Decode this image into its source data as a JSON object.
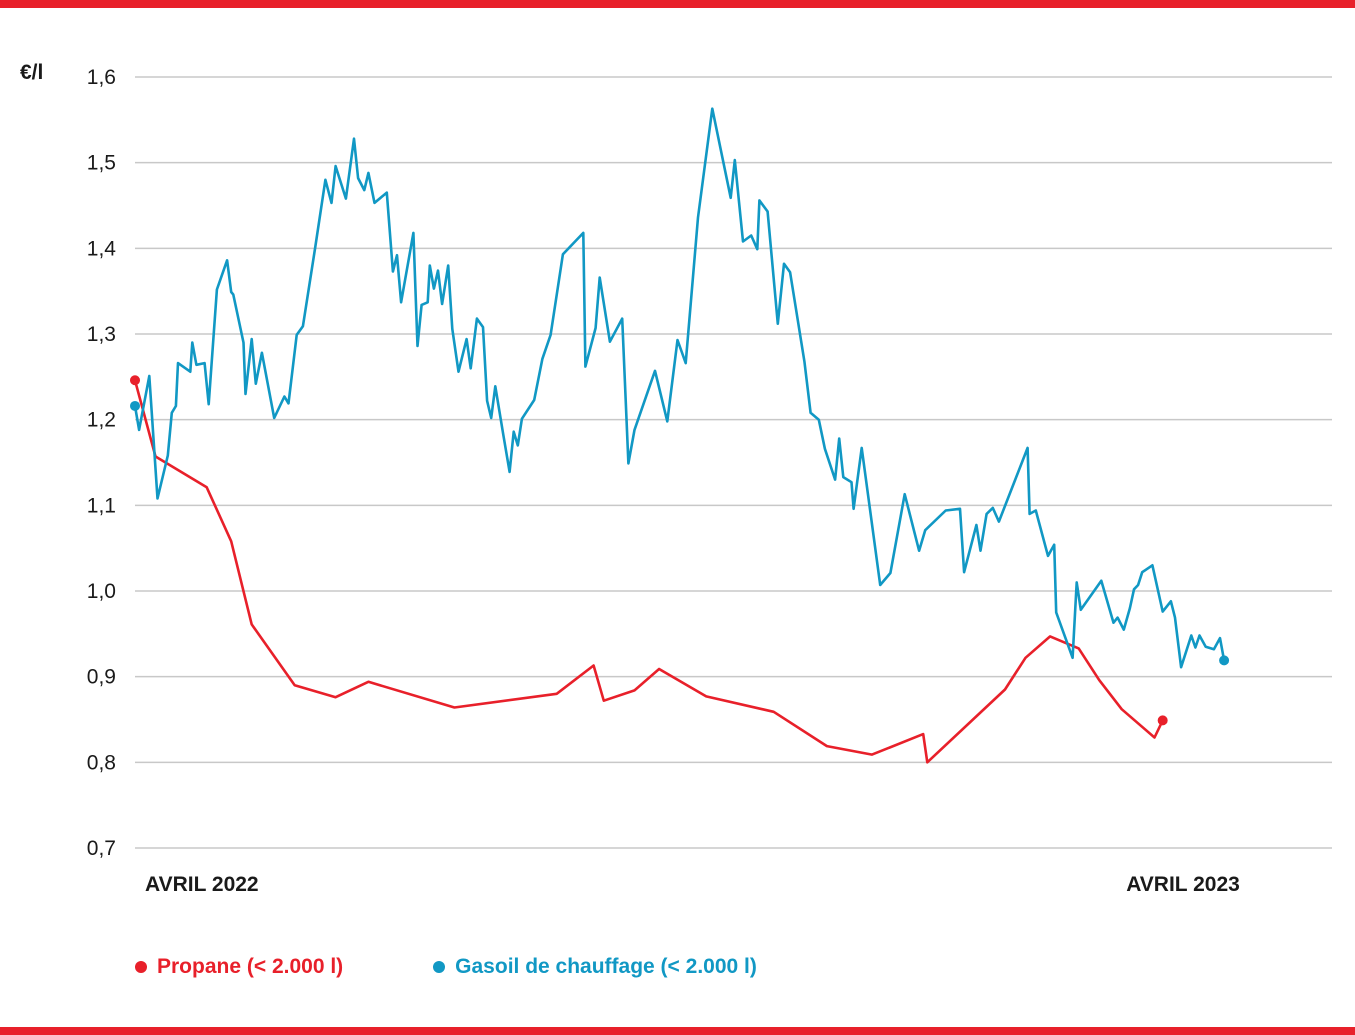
{
  "chart_data": {
    "type": "line",
    "unit_label": "€/l",
    "ylim": [
      0.7,
      1.6
    ],
    "yticks": [
      "1,6",
      "1,5",
      "1,4",
      "1,3",
      "1,2",
      "1,1",
      "1,0",
      "0,9",
      "0,8",
      "0,7"
    ],
    "ytick_values": [
      1.6,
      1.5,
      1.4,
      1.3,
      1.2,
      1.1,
      1.0,
      0.9,
      0.8,
      0.7
    ],
    "grid": "horizontal",
    "xlim": [
      0,
      53
    ],
    "xlabels": [
      {
        "text": "AVRIL 2022",
        "x": 0
      },
      {
        "text": "AVRIL 2023",
        "x": 52
      }
    ],
    "series": [
      {
        "name": "Propane (< 2.000 l)",
        "color": "#e8202a",
        "end_markers": true,
        "points": [
          [
            0.0,
            1.246
          ],
          [
            1.0,
            1.157
          ],
          [
            3.5,
            1.121
          ],
          [
            4.7,
            1.058
          ],
          [
            5.7,
            0.961
          ],
          [
            7.8,
            0.89
          ],
          [
            9.8,
            0.876
          ],
          [
            11.4,
            0.894
          ],
          [
            15.6,
            0.864
          ],
          [
            20.6,
            0.88
          ],
          [
            22.4,
            0.913
          ],
          [
            22.9,
            0.872
          ],
          [
            24.4,
            0.884
          ],
          [
            25.6,
            0.909
          ],
          [
            27.9,
            0.877
          ],
          [
            31.2,
            0.859
          ],
          [
            33.8,
            0.819
          ],
          [
            36.0,
            0.809
          ],
          [
            38.5,
            0.833
          ],
          [
            38.7,
            0.8
          ],
          [
            42.5,
            0.885
          ],
          [
            43.5,
            0.922
          ],
          [
            44.7,
            0.947
          ],
          [
            46.1,
            0.933
          ],
          [
            47.1,
            0.896
          ],
          [
            48.2,
            0.862
          ],
          [
            49.8,
            0.829
          ],
          [
            50.2,
            0.849
          ]
        ]
      },
      {
        "name": "Gasoil de chauffage (< 2.000 l)",
        "color": "#1198c4",
        "end_markers": true,
        "points": [
          [
            0.0,
            1.216
          ],
          [
            0.2,
            1.188
          ],
          [
            0.7,
            1.251
          ],
          [
            1.1,
            1.108
          ],
          [
            1.6,
            1.158
          ],
          [
            1.8,
            1.208
          ],
          [
            2.0,
            1.216
          ],
          [
            2.1,
            1.266
          ],
          [
            2.7,
            1.256
          ],
          [
            2.8,
            1.29
          ],
          [
            3.0,
            1.264
          ],
          [
            3.4,
            1.266
          ],
          [
            3.6,
            1.218
          ],
          [
            4.0,
            1.352
          ],
          [
            4.5,
            1.386
          ],
          [
            4.7,
            1.349
          ],
          [
            4.8,
            1.346
          ],
          [
            5.3,
            1.29
          ],
          [
            5.4,
            1.23
          ],
          [
            5.7,
            1.294
          ],
          [
            5.9,
            1.242
          ],
          [
            6.2,
            1.278
          ],
          [
            6.8,
            1.202
          ],
          [
            7.3,
            1.227
          ],
          [
            7.5,
            1.219
          ],
          [
            7.9,
            1.299
          ],
          [
            8.2,
            1.309
          ],
          [
            8.8,
            1.401
          ],
          [
            9.3,
            1.48
          ],
          [
            9.6,
            1.453
          ],
          [
            9.8,
            1.496
          ],
          [
            10.3,
            1.458
          ],
          [
            10.7,
            1.528
          ],
          [
            10.9,
            1.482
          ],
          [
            11.2,
            1.468
          ],
          [
            11.4,
            1.488
          ],
          [
            11.7,
            1.453
          ],
          [
            12.3,
            1.465
          ],
          [
            12.6,
            1.373
          ],
          [
            12.8,
            1.392
          ],
          [
            13.0,
            1.337
          ],
          [
            13.6,
            1.418
          ],
          [
            13.8,
            1.286
          ],
          [
            14.0,
            1.334
          ],
          [
            14.3,
            1.337
          ],
          [
            14.4,
            1.38
          ],
          [
            14.6,
            1.353
          ],
          [
            14.8,
            1.374
          ],
          [
            15.0,
            1.335
          ],
          [
            15.3,
            1.38
          ],
          [
            15.5,
            1.306
          ],
          [
            15.8,
            1.256
          ],
          [
            16.2,
            1.294
          ],
          [
            16.4,
            1.26
          ],
          [
            16.7,
            1.318
          ],
          [
            17.0,
            1.308
          ],
          [
            17.2,
            1.222
          ],
          [
            17.4,
            1.202
          ],
          [
            17.6,
            1.239
          ],
          [
            18.0,
            1.181
          ],
          [
            18.3,
            1.139
          ],
          [
            18.5,
            1.186
          ],
          [
            18.7,
            1.17
          ],
          [
            18.9,
            1.201
          ],
          [
            19.5,
            1.223
          ],
          [
            19.9,
            1.271
          ],
          [
            20.3,
            1.299
          ],
          [
            20.9,
            1.393
          ],
          [
            21.9,
            1.418
          ],
          [
            22.0,
            1.262
          ],
          [
            22.5,
            1.307
          ],
          [
            22.7,
            1.366
          ],
          [
            23.2,
            1.291
          ],
          [
            23.8,
            1.318
          ],
          [
            24.1,
            1.149
          ],
          [
            24.4,
            1.188
          ],
          [
            25.4,
            1.257
          ],
          [
            26.0,
            1.198
          ],
          [
            26.5,
            1.293
          ],
          [
            26.9,
            1.266
          ],
          [
            27.5,
            1.436
          ],
          [
            28.2,
            1.563
          ],
          [
            29.1,
            1.459
          ],
          [
            29.3,
            1.503
          ],
          [
            29.7,
            1.408
          ],
          [
            30.1,
            1.415
          ],
          [
            30.4,
            1.399
          ],
          [
            30.5,
            1.456
          ],
          [
            30.9,
            1.443
          ],
          [
            31.4,
            1.312
          ],
          [
            31.7,
            1.382
          ],
          [
            32.0,
            1.372
          ],
          [
            32.7,
            1.268
          ],
          [
            33.0,
            1.208
          ],
          [
            33.4,
            1.2
          ],
          [
            33.7,
            1.166
          ],
          [
            34.2,
            1.13
          ],
          [
            34.4,
            1.178
          ],
          [
            34.6,
            1.133
          ],
          [
            35.0,
            1.127
          ],
          [
            35.1,
            1.096
          ],
          [
            35.5,
            1.167
          ],
          [
            36.4,
            1.007
          ],
          [
            36.9,
            1.021
          ],
          [
            37.6,
            1.113
          ],
          [
            38.3,
            1.047
          ],
          [
            38.6,
            1.071
          ],
          [
            39.6,
            1.094
          ],
          [
            40.3,
            1.096
          ],
          [
            40.5,
            1.022
          ],
          [
            41.1,
            1.077
          ],
          [
            41.3,
            1.047
          ],
          [
            41.6,
            1.09
          ],
          [
            41.9,
            1.097
          ],
          [
            42.2,
            1.081
          ],
          [
            43.6,
            1.167
          ],
          [
            43.7,
            1.09
          ],
          [
            44.0,
            1.094
          ],
          [
            44.6,
            1.041
          ],
          [
            44.9,
            1.054
          ],
          [
            45.0,
            0.975
          ],
          [
            45.8,
            0.922
          ],
          [
            46.0,
            1.01
          ],
          [
            46.2,
            0.978
          ],
          [
            47.2,
            1.012
          ],
          [
            47.8,
            0.963
          ],
          [
            48.0,
            0.969
          ],
          [
            48.3,
            0.955
          ],
          [
            48.6,
            0.98
          ],
          [
            48.8,
            1.002
          ],
          [
            49.0,
            1.007
          ],
          [
            49.2,
            1.022
          ],
          [
            49.7,
            1.03
          ],
          [
            50.2,
            0.976
          ],
          [
            50.6,
            0.988
          ],
          [
            50.8,
            0.969
          ],
          [
            51.1,
            0.911
          ],
          [
            51.6,
            0.948
          ],
          [
            51.8,
            0.934
          ],
          [
            52.0,
            0.948
          ],
          [
            52.3,
            0.935
          ],
          [
            52.7,
            0.932
          ],
          [
            53.0,
            0.945
          ],
          [
            53.2,
            0.919
          ]
        ]
      }
    ]
  }
}
